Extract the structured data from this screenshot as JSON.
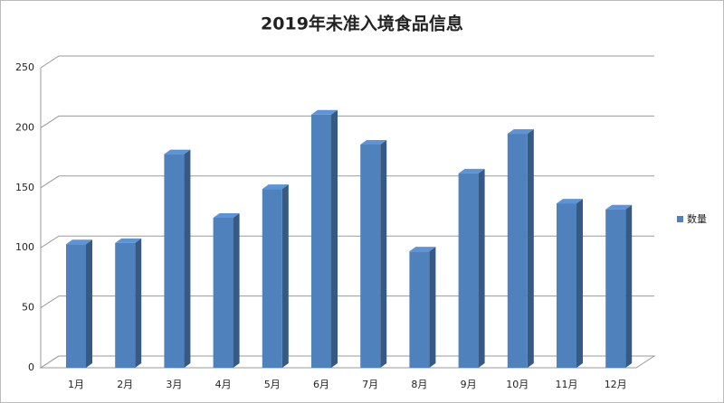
{
  "chart_data": {
    "type": "bar",
    "title": "2019年未准入境食品信息",
    "categories": [
      "1月",
      "2月",
      "3月",
      "4月",
      "5月",
      "6月",
      "7月",
      "8月",
      "9月",
      "10月",
      "11月",
      "12月"
    ],
    "series": [
      {
        "name": "数量",
        "color": "#4f81bd",
        "values": [
          103,
          104,
          178,
          125,
          149,
          211,
          186,
          97,
          162,
          195,
          137,
          132
        ]
      }
    ],
    "ylim": [
      0,
      250
    ],
    "yticks": [
      0,
      50,
      100,
      150,
      200,
      250
    ],
    "grid": true,
    "legend": "right"
  }
}
